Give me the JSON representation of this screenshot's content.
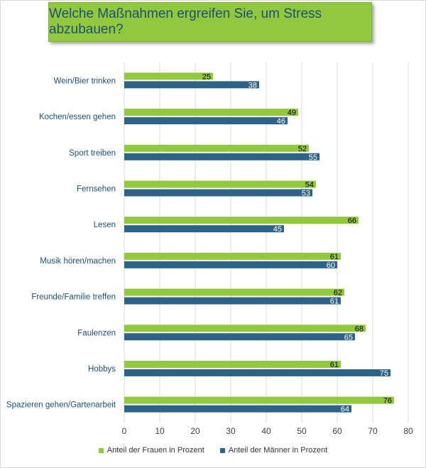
{
  "chart_data": {
    "type": "bar",
    "orientation": "horizontal",
    "title": "Welche Maßnahmen ergreifen Sie, um Stress abzubauen?",
    "categories": [
      "Wein/Bier trinken",
      "Kochen/essen gehen",
      "Sport treiben",
      "Fernsehen",
      "Lesen",
      "Musik hören/machen",
      "Freunde/Familie treffen",
      "Faulenzen",
      "Hobbys",
      "Spazieren gehen/Gartenarbeit"
    ],
    "series": [
      {
        "name": "Anteil der Frauen in Prozent",
        "values": [
          25,
          49,
          52,
          54,
          66,
          61,
          62,
          68,
          61,
          76
        ],
        "color": "#92c83e",
        "label_color": "#000000"
      },
      {
        "name": "Anteil der Männer in Prozent",
        "values": [
          38,
          46,
          55,
          53,
          45,
          60,
          61,
          65,
          75,
          64
        ],
        "color": "#2e6287",
        "label_color": "#ffffff"
      }
    ],
    "xlim": [
      0,
      80
    ],
    "xticks": [
      "0",
      "10",
      "20",
      "30",
      "40",
      "50",
      "60",
      "70",
      "80"
    ],
    "grid": true,
    "legend": "bottom",
    "xlabel": "",
    "ylabel": ""
  }
}
